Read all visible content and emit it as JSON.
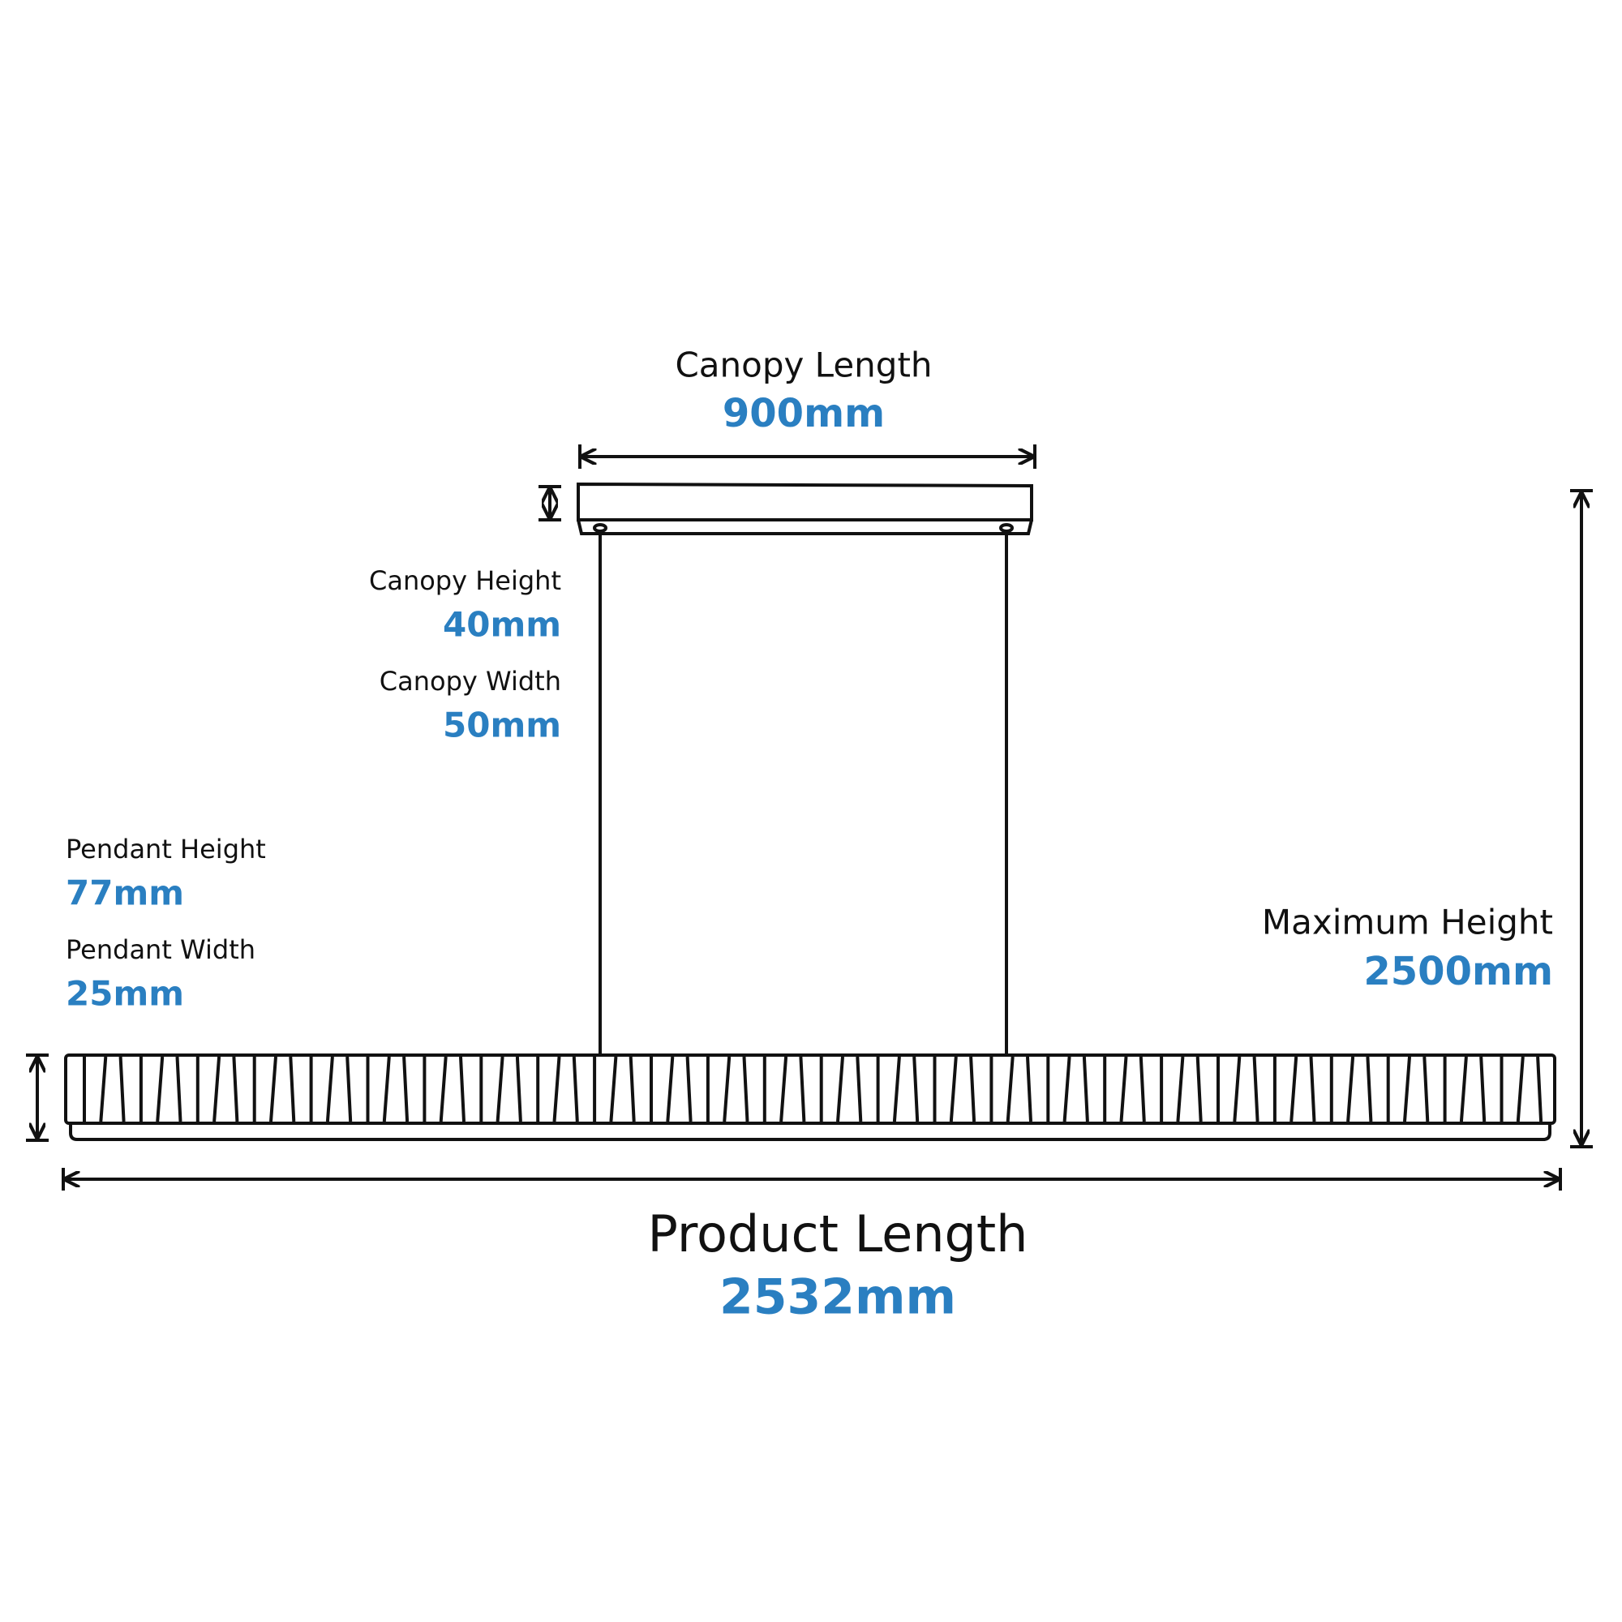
{
  "canopy_length": {
    "label": "Canopy Length",
    "value": "900mm"
  },
  "canopy_height": {
    "label": "Canopy Height",
    "value": "40mm"
  },
  "canopy_width": {
    "label": "Canopy Width",
    "value": "50mm"
  },
  "pendant_height": {
    "label": "Pendant Height",
    "value": "77mm"
  },
  "pendant_width": {
    "label": "Pendant Width",
    "value": "25mm"
  },
  "maximum_height": {
    "label": "Maximum Height",
    "value": "2500mm"
  },
  "product_length": {
    "label": "Product Length",
    "value": "2532mm"
  }
}
